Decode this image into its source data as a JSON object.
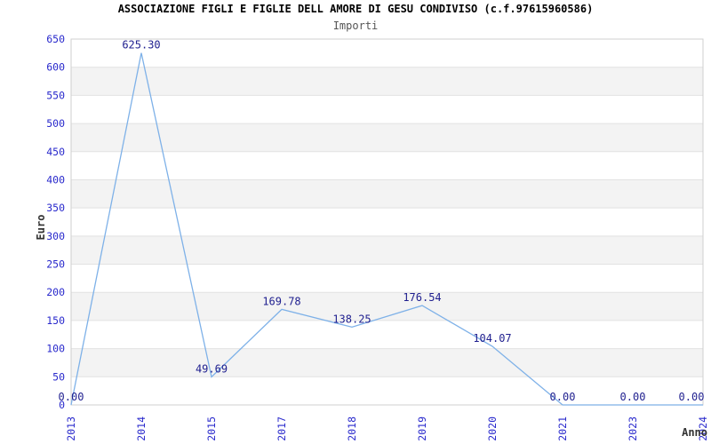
{
  "chart_data": {
    "type": "line",
    "title": "ASSOCIAZIONE FIGLI E FIGLIE DELL AMORE DI GESU CONDIVISO (c.f.97615960586)",
    "subtitle": "Importi",
    "xlabel": "Anno",
    "ylabel": "Euro",
    "categories": [
      "2013",
      "2014",
      "2015",
      "2017",
      "2018",
      "2019",
      "2020",
      "2021",
      "2023",
      "2024"
    ],
    "values": [
      0.0,
      625.3,
      49.69,
      169.78,
      138.25,
      176.54,
      104.07,
      0.0,
      0.0,
      0.0
    ],
    "point_labels": [
      "0.00",
      "625.30",
      "49.69",
      "169.78",
      "138.25",
      "176.54",
      "104.07",
      "0.00",
      "0.00",
      "0.00"
    ],
    "ylim": [
      0,
      650
    ],
    "ytick_step": 50,
    "grid": "horizontal-only",
    "legend": "none",
    "colors": {
      "line": "#7eb1e8",
      "tick_label": "#2929cc",
      "point_label": "#1f1f8f",
      "band": "#f3f3f3",
      "gridline": "#e2e2e2",
      "plot_border": "#cfcfcf",
      "subtitle": "#555555",
      "axis_title": "#333333",
      "title": "#000000"
    }
  }
}
